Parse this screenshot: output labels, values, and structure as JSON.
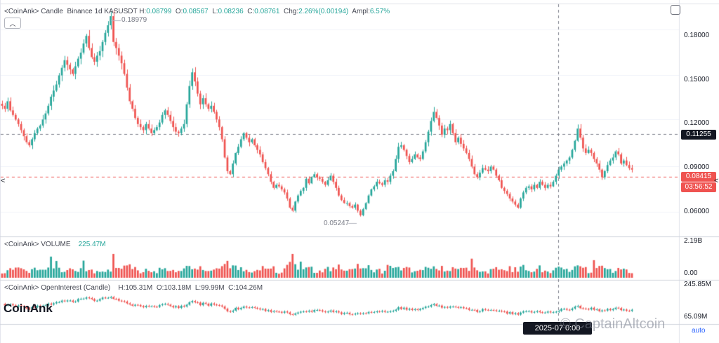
{
  "header": {
    "main": {
      "source": "<CoinAnk>",
      "type": "Candle",
      "info": "Binance 1d KASUSDT",
      "h_label": "H:",
      "h": "0.08799",
      "o_label": "O:",
      "o": "0.08567",
      "l_label": "L:",
      "l": "0.08236",
      "c_label": "C:",
      "c": "0.08761",
      "chg_label": "Chg:",
      "chg": "2.26%(0.00194)",
      "ampl_label": "Ampl:",
      "ampl": "6.57%"
    },
    "volume": {
      "source": "<CoinAnk>",
      "name": "VOLUME",
      "value": "225.47M"
    },
    "oi": {
      "source": "<CoinAnk>",
      "name": "OpenInterest (Candle)",
      "h_label": "H:",
      "h": "105.31M",
      "o_label": "O:",
      "o": "103.18M",
      "l_label": "L:",
      "l": "99.99M",
      "c_label": "C:",
      "c": "104.26M"
    }
  },
  "price_axis": [
    "0.18000",
    "0.15000",
    "0.12000",
    "0.09000",
    "0.06000"
  ],
  "volume_axis": [
    "2.19B",
    "0.00"
  ],
  "oi_axis": [
    "245.85M",
    "65.09M"
  ],
  "tags": {
    "crosshair_price": "0.11255",
    "last_price": "0.08415",
    "countdown": "03:56:52"
  },
  "annotations": {
    "high": "0.18979",
    "low": "0.05247"
  },
  "time_badge": "2025-07 0:00",
  "logo": "CoinAnk",
  "watermark": "© CaptainAltcoin",
  "auto_label": "auto",
  "collapse_icon": "chevron-up-icon",
  "colors": {
    "up": "#26a69a",
    "down": "#ef5350",
    "last_price": "#ef5350"
  },
  "chart_data": {
    "type": "candlestick",
    "symbol": "KASUSDT",
    "ylim": [
      0.045,
      0.195
    ],
    "closes": [
      0.13,
      0.128,
      0.133,
      0.127,
      0.124,
      0.121,
      0.118,
      0.114,
      0.11,
      0.106,
      0.104,
      0.108,
      0.112,
      0.115,
      0.117,
      0.121,
      0.125,
      0.13,
      0.136,
      0.14,
      0.144,
      0.15,
      0.155,
      0.16,
      0.157,
      0.154,
      0.151,
      0.156,
      0.161,
      0.165,
      0.171,
      0.176,
      0.168,
      0.162,
      0.159,
      0.163,
      0.166,
      0.172,
      0.178,
      0.183,
      0.189,
      0.172,
      0.168,
      0.163,
      0.158,
      0.151,
      0.142,
      0.133,
      0.128,
      0.122,
      0.118,
      0.116,
      0.114,
      0.118,
      0.115,
      0.112,
      0.114,
      0.116,
      0.119,
      0.124,
      0.127,
      0.124,
      0.12,
      0.116,
      0.113,
      0.112,
      0.115,
      0.118,
      0.131,
      0.143,
      0.152,
      0.146,
      0.138,
      0.131,
      0.135,
      0.131,
      0.128,
      0.13,
      0.126,
      0.121,
      0.116,
      0.108,
      0.096,
      0.087,
      0.085,
      0.092,
      0.099,
      0.103,
      0.108,
      0.112,
      0.109,
      0.106,
      0.108,
      0.104,
      0.101,
      0.098,
      0.093,
      0.089,
      0.085,
      0.08,
      0.076,
      0.078,
      0.077,
      0.075,
      0.073,
      0.069,
      0.063,
      0.061,
      0.067,
      0.071,
      0.074,
      0.076,
      0.082,
      0.079,
      0.083,
      0.085,
      0.083,
      0.082,
      0.08,
      0.078,
      0.081,
      0.084,
      0.08,
      0.076,
      0.071,
      0.068,
      0.066,
      0.066,
      0.064,
      0.063,
      0.065,
      0.061,
      0.058,
      0.062,
      0.066,
      0.071,
      0.075,
      0.077,
      0.08,
      0.079,
      0.078,
      0.081,
      0.08,
      0.084,
      0.087,
      0.095,
      0.103,
      0.104,
      0.101,
      0.097,
      0.093,
      0.095,
      0.098,
      0.096,
      0.095,
      0.1,
      0.106,
      0.113,
      0.12,
      0.126,
      0.122,
      0.117,
      0.111,
      0.115,
      0.114,
      0.118,
      0.112,
      0.106,
      0.109,
      0.105,
      0.102,
      0.099,
      0.095,
      0.09,
      0.085,
      0.083,
      0.086,
      0.089,
      0.088,
      0.087,
      0.09,
      0.088,
      0.084,
      0.081,
      0.076,
      0.074,
      0.072,
      0.069,
      0.067,
      0.065,
      0.063,
      0.069,
      0.073,
      0.076,
      0.077,
      0.075,
      0.078,
      0.076,
      0.08,
      0.078,
      0.076,
      0.078,
      0.077,
      0.08,
      0.084,
      0.088,
      0.09,
      0.092,
      0.094,
      0.096,
      0.101,
      0.107,
      0.115,
      0.109,
      0.102,
      0.099,
      0.101,
      0.099,
      0.095,
      0.092,
      0.088,
      0.083,
      0.087,
      0.091,
      0.094,
      0.096,
      0.1,
      0.098,
      0.092,
      0.094,
      0.091,
      0.089,
      0.088
    ]
  }
}
